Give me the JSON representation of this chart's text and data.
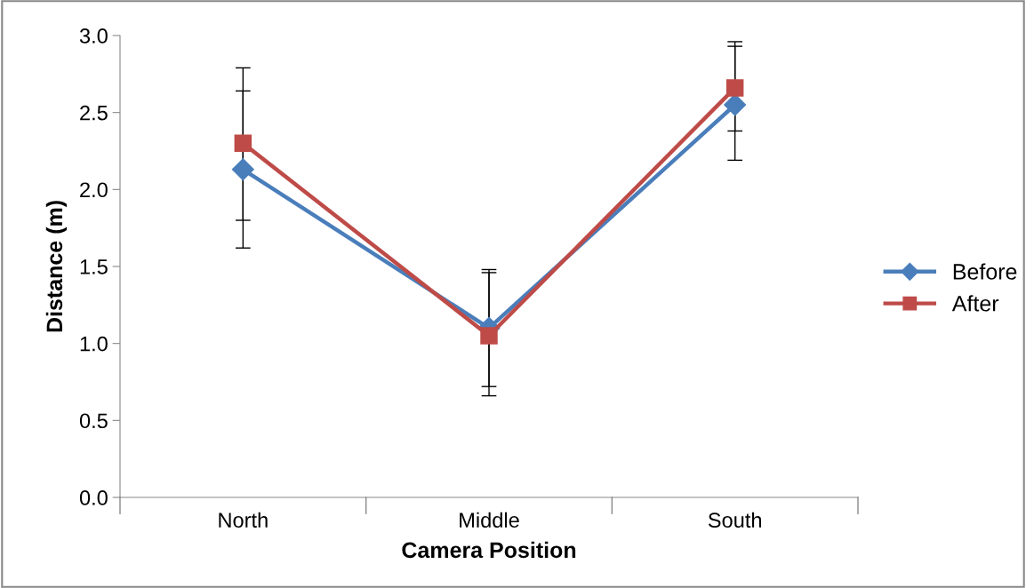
{
  "chart_data": {
    "type": "line",
    "xlabel": "Camera Position",
    "ylabel": "Distance (m)",
    "categories": [
      "North",
      "Middle",
      "South"
    ],
    "series": [
      {
        "name": "Before",
        "color": "#4a7ebb",
        "marker": "diamond",
        "values": [
          2.13,
          1.1,
          2.55
        ],
        "errors": [
          [
            1.62,
            2.64
          ],
          [
            0.72,
            1.48
          ],
          [
            2.19,
            2.93
          ]
        ]
      },
      {
        "name": "After",
        "color": "#be4b48",
        "marker": "square",
        "values": [
          2.3,
          1.05,
          2.66
        ],
        "errors": [
          [
            1.8,
            2.79
          ],
          [
            0.66,
            1.46
          ],
          [
            2.38,
            2.96
          ]
        ]
      }
    ],
    "ylim": [
      0,
      3.0
    ],
    "yticks": [
      {
        "value": 0,
        "label": "0.0"
      },
      {
        "value": 0.5,
        "label": "0.5"
      },
      {
        "value": 1.0,
        "label": "1.0"
      },
      {
        "value": 1.5,
        "label": "1.5"
      },
      {
        "value": 2.0,
        "label": "2.0"
      },
      {
        "value": 2.5,
        "label": "2.5"
      },
      {
        "value": 3.0,
        "label": "3.0"
      }
    ],
    "legend": "right",
    "grid": false,
    "line_style": "solid"
  }
}
